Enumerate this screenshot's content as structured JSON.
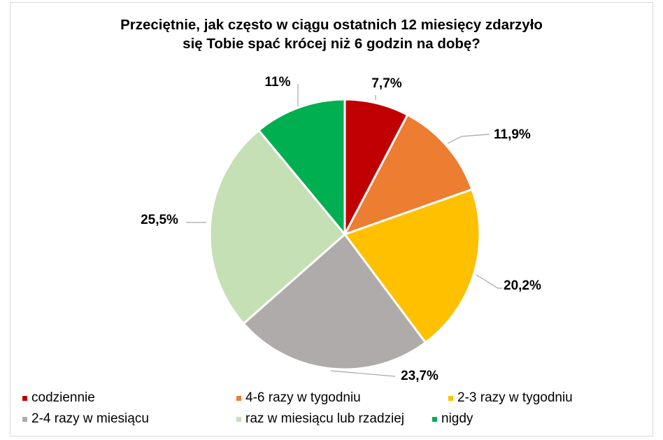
{
  "chart_data": {
    "type": "pie",
    "title": "Przeciętnie, jak często w ciągu ostatnich 12 miesięcy zdarzyło się Tobie spać krócej niż 6 godzin na dobę?",
    "title_lines": [
      "Przeciętnie, jak często w ciągu ostatnich 12 miesięcy zdarzyło",
      "się Tobie spać krócej niż 6 godzin na dobę?"
    ],
    "categories": [
      "codziennie",
      "4-6 razy w tygodniu",
      "2-3 razy w tygodniu",
      "2-4 razy w miesiącu",
      "raz w miesiącu lub rzadziej",
      "nigdy"
    ],
    "values": [
      7.7,
      11.9,
      20.2,
      23.7,
      25.5,
      11.0
    ],
    "labels": [
      "7,7%",
      "11,9%",
      "20,2%",
      "23,7%",
      "25,5%",
      "11%"
    ],
    "colors": [
      "#C00000",
      "#ED7D31",
      "#FFC000",
      "#AFABAB",
      "#C5E0B4",
      "#00B050"
    ],
    "legend_position": "bottom",
    "start_angle": "12 o'clock, clockwise"
  },
  "legend": [
    {
      "label": "codziennie",
      "color": "#C00000"
    },
    {
      "label": "4-6 razy w tygodniu",
      "color": "#ED7D31"
    },
    {
      "label": "2-3 razy w tygodniu",
      "color": "#FFC000"
    },
    {
      "label": "2-4 razy w miesiącu",
      "color": "#AFABAB"
    },
    {
      "label": "raz w miesiącu lub rzadziej",
      "color": "#C5E0B4"
    },
    {
      "label": "nigdy",
      "color": "#00B050"
    }
  ]
}
